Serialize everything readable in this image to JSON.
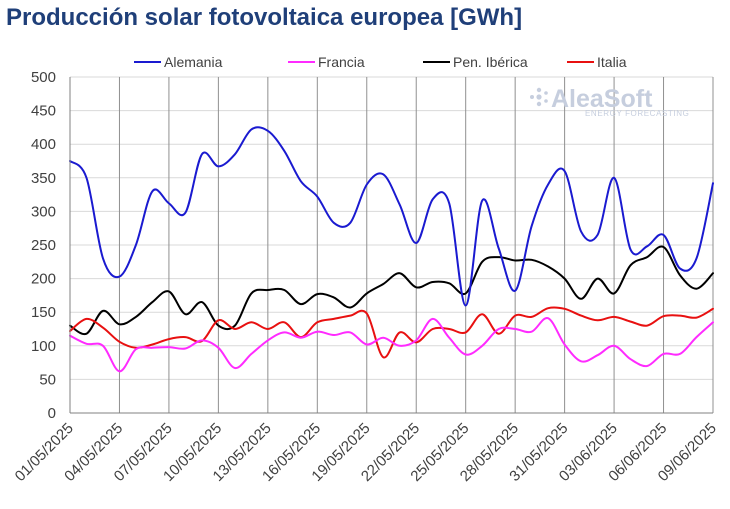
{
  "chart_data": {
    "type": "line",
    "title": "Producción solar fotovoltaica europea [GWh]",
    "xlabel": "",
    "ylabel": "",
    "ylim": [
      0,
      500
    ],
    "yticks": [
      "0",
      "50",
      "100",
      "150",
      "200",
      "250",
      "300",
      "350",
      "400",
      "450",
      "500"
    ],
    "xticks": [
      "01/05/2025",
      "04/05/2025",
      "07/05/2025",
      "10/05/2025",
      "13/05/2025",
      "16/05/2025",
      "19/05/2025",
      "22/05/2025",
      "25/05/2025",
      "28/05/2025",
      "31/05/2025",
      "03/06/2025",
      "06/06/2025",
      "09/06/2025"
    ],
    "x": [
      "01/05",
      "02/05",
      "03/05",
      "04/05",
      "05/05",
      "06/05",
      "07/05",
      "08/05",
      "09/05",
      "10/05",
      "11/05",
      "12/05",
      "13/05",
      "14/05",
      "15/05",
      "16/05",
      "17/05",
      "18/05",
      "19/05",
      "20/05",
      "21/05",
      "22/05",
      "23/05",
      "24/05",
      "25/05",
      "26/05",
      "27/05",
      "28/05",
      "29/05",
      "30/05",
      "31/05",
      "01/06",
      "02/06",
      "03/06",
      "04/06",
      "05/06",
      "06/06",
      "07/06",
      "08/06",
      "09/06"
    ],
    "grid": true,
    "legend_position": "top",
    "series": [
      {
        "name": "Alemania",
        "color": "#1a1ad0",
        "values": [
          375,
          350,
          230,
          203,
          250,
          330,
          312,
          298,
          385,
          367,
          385,
          422,
          420,
          390,
          345,
          322,
          283,
          283,
          340,
          355,
          310,
          253,
          318,
          312,
          160,
          316,
          245,
          182,
          278,
          340,
          360,
          270,
          265,
          350,
          243,
          248,
          265,
          215,
          230,
          342
        ]
      },
      {
        "name": "Francia",
        "color": "#ff2bff",
        "values": [
          115,
          103,
          100,
          62,
          95,
          97,
          98,
          96,
          108,
          97,
          67,
          88,
          108,
          120,
          112,
          121,
          116,
          120,
          102,
          112,
          100,
          108,
          140,
          112,
          87,
          100,
          125,
          125,
          121,
          141,
          102,
          77,
          86,
          100,
          80,
          70,
          88,
          88,
          113,
          135
        ]
      },
      {
        "name": "Pen. Ibérica",
        "color": "#000000",
        "values": [
          130,
          118,
          152,
          132,
          143,
          165,
          181,
          147,
          165,
          130,
          130,
          178,
          183,
          183,
          162,
          177,
          172,
          157,
          178,
          192,
          208,
          187,
          195,
          193,
          178,
          225,
          232,
          227,
          228,
          218,
          200,
          170,
          200,
          178,
          220,
          232,
          247,
          205,
          185,
          208
        ]
      },
      {
        "name": "Italia",
        "color": "#e81010",
        "values": [
          122,
          140,
          127,
          106,
          97,
          102,
          110,
          113,
          107,
          138,
          125,
          135,
          125,
          135,
          113,
          135,
          140,
          145,
          148,
          83,
          120,
          105,
          125,
          125,
          120,
          147,
          118,
          145,
          143,
          156,
          155,
          145,
          138,
          143,
          136,
          130,
          144,
          145,
          142,
          155
        ]
      }
    ]
  },
  "watermark": {
    "brand": "AleaSoft",
    "tagline": "ENERGY FORECASTING"
  }
}
